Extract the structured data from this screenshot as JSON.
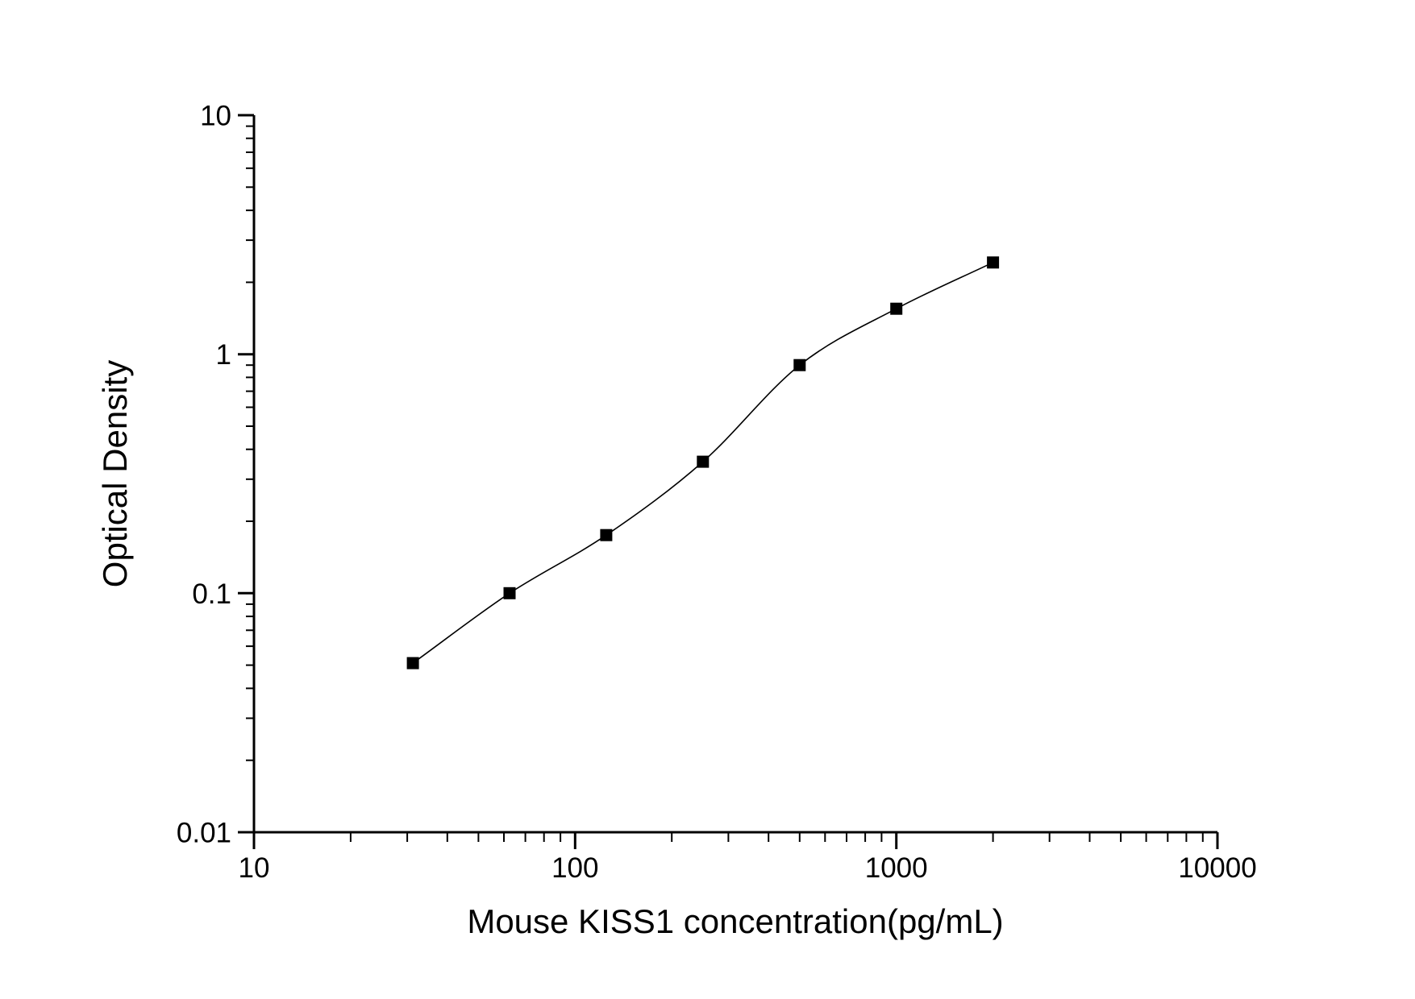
{
  "chart_data": {
    "type": "scatter",
    "title": "",
    "xlabel": "Mouse KISS1 concentration(pg/mL)",
    "ylabel": "Optical Density",
    "x_scale": "log",
    "y_scale": "log",
    "xlim": [
      10,
      10000
    ],
    "ylim": [
      0.01,
      10
    ],
    "grid": false,
    "legend": "none",
    "x_major_ticks": [
      {
        "value": 10,
        "label": "10"
      },
      {
        "value": 100,
        "label": "100"
      },
      {
        "value": 1000,
        "label": "1000"
      },
      {
        "value": 10000,
        "label": "10000"
      }
    ],
    "y_major_ticks": [
      {
        "value": 10,
        "label": "10"
      },
      {
        "value": 1,
        "label": "1"
      },
      {
        "value": 0.1,
        "label": "0.1"
      },
      {
        "value": 0.01,
        "label": "0.01"
      }
    ],
    "minor_ticks": "log subdivisions 2-9 per decade on both axes",
    "series": [
      {
        "name": "standard-points",
        "type": "scatter",
        "marker": "filled-square",
        "marker_size_px": 15,
        "color": "#000000",
        "x": [
          31.25,
          62.5,
          125,
          250,
          500,
          1000,
          2000
        ],
        "y": [
          0.051,
          0.1,
          0.175,
          0.355,
          0.9,
          1.55,
          2.42
        ]
      },
      {
        "name": "fitted-curve",
        "type": "smooth-line",
        "color": "#000000"
      }
    ]
  },
  "colors": {
    "background": "#ffffff",
    "axis": "#000000",
    "text": "#000000"
  }
}
